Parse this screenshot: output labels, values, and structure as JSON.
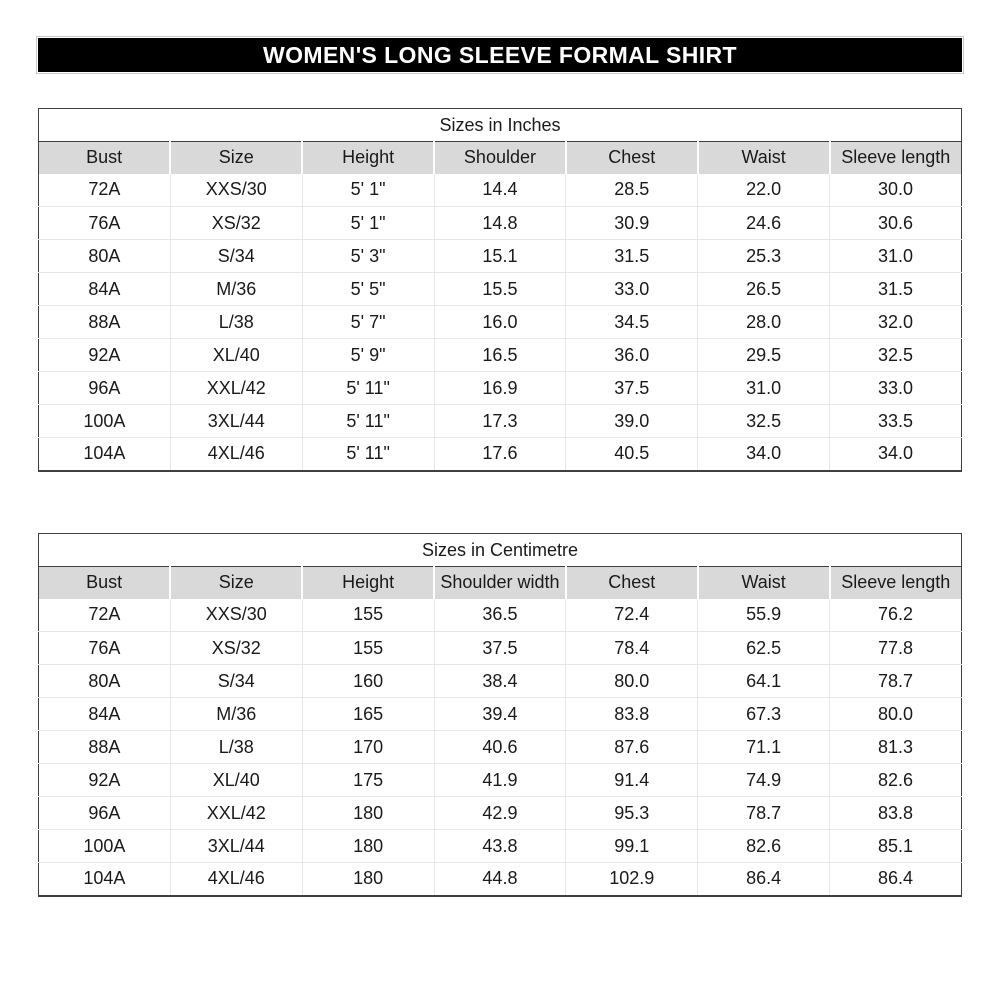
{
  "title": "WOMEN'S LONG SLEEVE FORMAL SHIRT",
  "colors": {
    "banner_bg": "#000000",
    "banner_text": "#ffffff",
    "header_row_bg": "#d9d9d9",
    "table_border": "#3f3f3f",
    "grid_line": "#e7e7e7"
  },
  "tables": [
    {
      "caption": "Sizes in Inches",
      "headers": [
        "Bust",
        "Size",
        "Height",
        "Shoulder",
        "Chest",
        "Waist",
        "Sleeve length"
      ],
      "rows": [
        [
          "72A",
          "XXS/30",
          "5' 1\"",
          "14.4",
          "28.5",
          "22.0",
          "30.0"
        ],
        [
          "76A",
          "XS/32",
          "5' 1\"",
          "14.8",
          "30.9",
          "24.6",
          "30.6"
        ],
        [
          "80A",
          "S/34",
          "5' 3\"",
          "15.1",
          "31.5",
          "25.3",
          "31.0"
        ],
        [
          "84A",
          "M/36",
          "5' 5\"",
          "15.5",
          "33.0",
          "26.5",
          "31.5"
        ],
        [
          "88A",
          "L/38",
          "5' 7\"",
          "16.0",
          "34.5",
          "28.0",
          "32.0"
        ],
        [
          "92A",
          "XL/40",
          "5' 9\"",
          "16.5",
          "36.0",
          "29.5",
          "32.5"
        ],
        [
          "96A",
          "XXL/42",
          "5' 11\"",
          "16.9",
          "37.5",
          "31.0",
          "33.0"
        ],
        [
          "100A",
          "3XL/44",
          "5' 11\"",
          "17.3",
          "39.0",
          "32.5",
          "33.5"
        ],
        [
          "104A",
          "4XL/46",
          "5' 11\"",
          "17.6",
          "40.5",
          "34.0",
          "34.0"
        ]
      ]
    },
    {
      "caption": "Sizes in Centimetre",
      "headers": [
        "Bust",
        "Size",
        "Height",
        "Shoulder width",
        "Chest",
        "Waist",
        "Sleeve length"
      ],
      "rows": [
        [
          "72A",
          "XXS/30",
          "155",
          "36.5",
          "72.4",
          "55.9",
          "76.2"
        ],
        [
          "76A",
          "XS/32",
          "155",
          "37.5",
          "78.4",
          "62.5",
          "77.8"
        ],
        [
          "80A",
          "S/34",
          "160",
          "38.4",
          "80.0",
          "64.1",
          "78.7"
        ],
        [
          "84A",
          "M/36",
          "165",
          "39.4",
          "83.8",
          "67.3",
          "80.0"
        ],
        [
          "88A",
          "L/38",
          "170",
          "40.6",
          "87.6",
          "71.1",
          "81.3"
        ],
        [
          "92A",
          "XL/40",
          "175",
          "41.9",
          "91.4",
          "74.9",
          "82.6"
        ],
        [
          "96A",
          "XXL/42",
          "180",
          "42.9",
          "95.3",
          "78.7",
          "83.8"
        ],
        [
          "100A",
          "3XL/44",
          "180",
          "43.8",
          "99.1",
          "82.6",
          "85.1"
        ],
        [
          "104A",
          "4XL/46",
          "180",
          "44.8",
          "102.9",
          "86.4",
          "86.4"
        ]
      ]
    }
  ]
}
